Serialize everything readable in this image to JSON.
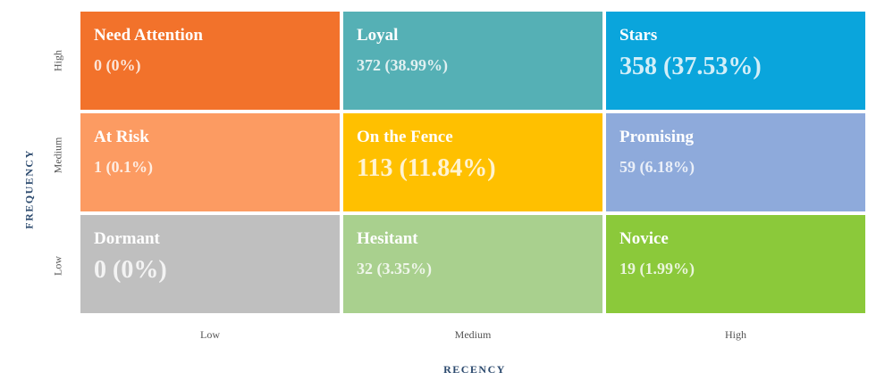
{
  "axes": {
    "y_title": "FREQUENCY",
    "x_title": "RECENCY",
    "y_labels": [
      "High",
      "Medium",
      "Low"
    ],
    "x_labels": [
      "Low",
      "Medium",
      "High"
    ]
  },
  "cells": [
    {
      "title": "Need Attention",
      "value": "0 (0%)"
    },
    {
      "title": "Loyal",
      "value": "372 (38.99%)"
    },
    {
      "title": "Stars",
      "value": "358 (37.53%)"
    },
    {
      "title": "At Risk",
      "value": "1 (0.1%)"
    },
    {
      "title": "On the Fence",
      "value": "113 (11.84%)"
    },
    {
      "title": "Promising",
      "value": "59 (6.18%)"
    },
    {
      "title": "Dormant",
      "value": "0 (0%)"
    },
    {
      "title": "Hesitant",
      "value": "32 (3.35%)"
    },
    {
      "title": "Novice",
      "value": "19 (1.99%)"
    }
  ]
}
